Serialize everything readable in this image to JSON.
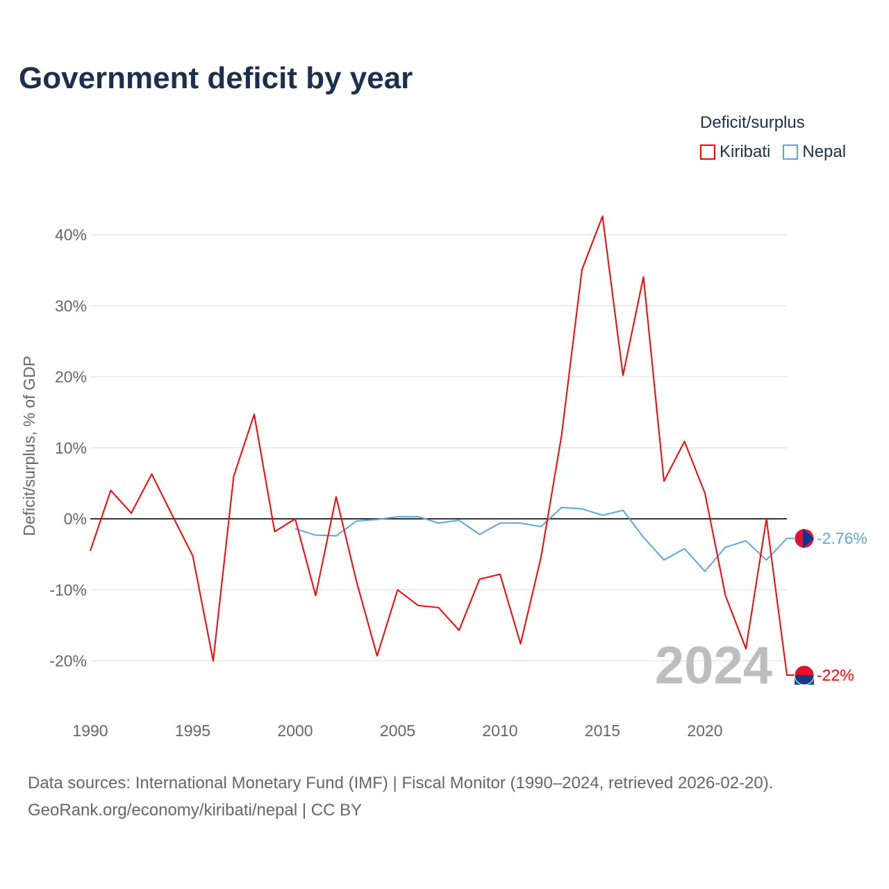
{
  "title": "Government deficit by year",
  "legend": {
    "title": "Deficit/surplus",
    "items": [
      {
        "label": "Kiribati",
        "color": "#ff0000"
      },
      {
        "label": "Nepal",
        "color": "#5ba4e8"
      }
    ]
  },
  "source": {
    "line1": "Data sources: International Monetary Fund (IMF) | Fiscal Monitor (1990–2024, retrieved 2026-02-20).",
    "line2": "GeoRank.org/economy/kiribati/nepal | CC BY"
  },
  "chart_data": {
    "type": "line",
    "title": "Government deficit by year",
    "xlabel": "",
    "ylabel": "Deficit/surplus, % of GDP",
    "xlim": [
      1990,
      2024
    ],
    "ylim": [
      -25,
      45
    ],
    "x_ticks": [
      1990,
      1995,
      2000,
      2005,
      2010,
      2015,
      2020
    ],
    "y_ticks": [
      -20,
      -10,
      0,
      10,
      20,
      30,
      40
    ],
    "y_tick_labels": [
      "-20%",
      "-10%",
      "0%",
      "10%",
      "20%",
      "30%",
      "40%"
    ],
    "watermark_year": "2024",
    "series": [
      {
        "name": "Kiribati",
        "color": "#ff0000",
        "end_label": "-22%",
        "x": [
          1990,
          1991,
          1992,
          1993,
          1994,
          1995,
          1996,
          1997,
          1998,
          1999,
          2000,
          2001,
          2002,
          2003,
          2004,
          2005,
          2006,
          2007,
          2008,
          2009,
          2010,
          2011,
          2012,
          2013,
          2014,
          2015,
          2016,
          2017,
          2018,
          2019,
          2020,
          2021,
          2022,
          2023,
          2024
        ],
        "values": [
          -4.5,
          4.0,
          0.8,
          6.3,
          0.5,
          -5.2,
          -20.0,
          6.0,
          14.7,
          -1.8,
          0.0,
          -10.8,
          3.1,
          -8.9,
          -19.3,
          -10.0,
          -12.2,
          -12.5,
          -15.7,
          -8.5,
          -7.8,
          -17.6,
          -5.4,
          11.7,
          35.1,
          42.6,
          20.2,
          34.1,
          5.3,
          10.9,
          3.6,
          -10.8,
          -18.3,
          0.0,
          -22.0
        ]
      },
      {
        "name": "Nepal",
        "color": "#5ba4e8",
        "end_label": "-2.76%",
        "x": [
          2000,
          2001,
          2002,
          2003,
          2004,
          2005,
          2006,
          2007,
          2008,
          2009,
          2010,
          2011,
          2012,
          2013,
          2014,
          2015,
          2016,
          2017,
          2018,
          2019,
          2020,
          2021,
          2022,
          2023,
          2024
        ],
        "values": [
          -1.4,
          -2.3,
          -2.4,
          -0.3,
          -0.1,
          0.3,
          0.3,
          -0.6,
          -0.2,
          -2.2,
          -0.6,
          -0.6,
          -1.1,
          1.6,
          1.4,
          0.5,
          1.2,
          -2.6,
          -5.8,
          -4.2,
          -7.4,
          -4.0,
          -3.1,
          -5.8,
          -2.76
        ]
      }
    ]
  }
}
